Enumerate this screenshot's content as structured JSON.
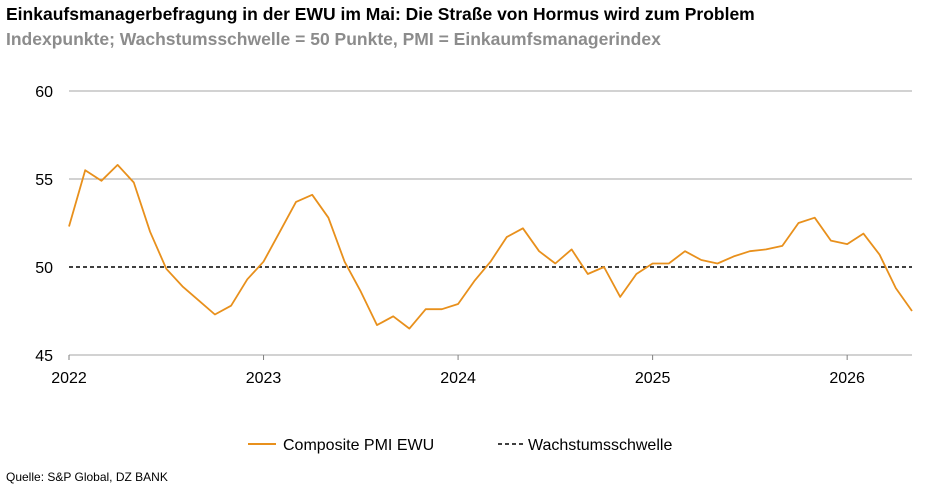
{
  "header": {
    "title": "Einkaufsmanagerbefragung in der EWU im Mai: Die Straße von Hormus wird zum Problem",
    "subtitle": "Indexpunkte; Wachstumsschwelle = 50 Punkte, PMI = Einkaumfsmanagerindex"
  },
  "footer": {
    "source": "Quelle: S&P Global, DZ BANK"
  },
  "chart_data": {
    "type": "line",
    "ylim": [
      45,
      60
    ],
    "yticks": [
      "45",
      "50",
      "55",
      "60"
    ],
    "xticks": [
      "2022",
      "2023",
      "2024",
      "2025",
      "2026"
    ],
    "xrange": [
      "2022-01",
      "2026-05"
    ],
    "grid": "horizontal",
    "legend_position": "bottom",
    "colors": {
      "series": "#e8901c",
      "threshold": "#000000",
      "grid": "#a6a6a6"
    },
    "series": [
      {
        "name": "Composite PMI EWU",
        "x": [
          "2022-01",
          "2022-02",
          "2022-03",
          "2022-04",
          "2022-05",
          "2022-06",
          "2022-07",
          "2022-08",
          "2022-09",
          "2022-10",
          "2022-11",
          "2022-12",
          "2023-01",
          "2023-02",
          "2023-03",
          "2023-04",
          "2023-05",
          "2023-06",
          "2023-07",
          "2023-08",
          "2023-09",
          "2023-10",
          "2023-11",
          "2023-12",
          "2024-01",
          "2024-02",
          "2024-03",
          "2024-04",
          "2024-05",
          "2024-06",
          "2024-07",
          "2024-08",
          "2024-09",
          "2024-10",
          "2024-11",
          "2024-12",
          "2025-01",
          "2025-02",
          "2025-03",
          "2025-04",
          "2025-05",
          "2025-06",
          "2025-07",
          "2025-08",
          "2025-09",
          "2025-10",
          "2025-11",
          "2025-12",
          "2026-01",
          "2026-02",
          "2026-03",
          "2026-04",
          "2026-05"
        ],
        "values": [
          52.3,
          55.5,
          54.9,
          55.8,
          54.8,
          52.0,
          49.9,
          48.9,
          48.1,
          47.3,
          47.8,
          49.3,
          50.3,
          52.0,
          53.7,
          54.1,
          52.8,
          50.3,
          48.6,
          46.7,
          47.2,
          46.5,
          47.6,
          47.6,
          47.9,
          49.2,
          50.3,
          51.7,
          52.2,
          50.9,
          50.2,
          51.0,
          49.6,
          50.0,
          48.3,
          49.6,
          50.2,
          50.2,
          50.9,
          50.4,
          50.2,
          50.6,
          50.9,
          51.0,
          51.2,
          52.5,
          52.8,
          51.5,
          51.3,
          51.9,
          50.7,
          48.8,
          47.5
        ]
      },
      {
        "name": "Wachstumsschwelle",
        "x": [
          "2022-01",
          "2026-05"
        ],
        "values": [
          50,
          50
        ]
      }
    ]
  }
}
